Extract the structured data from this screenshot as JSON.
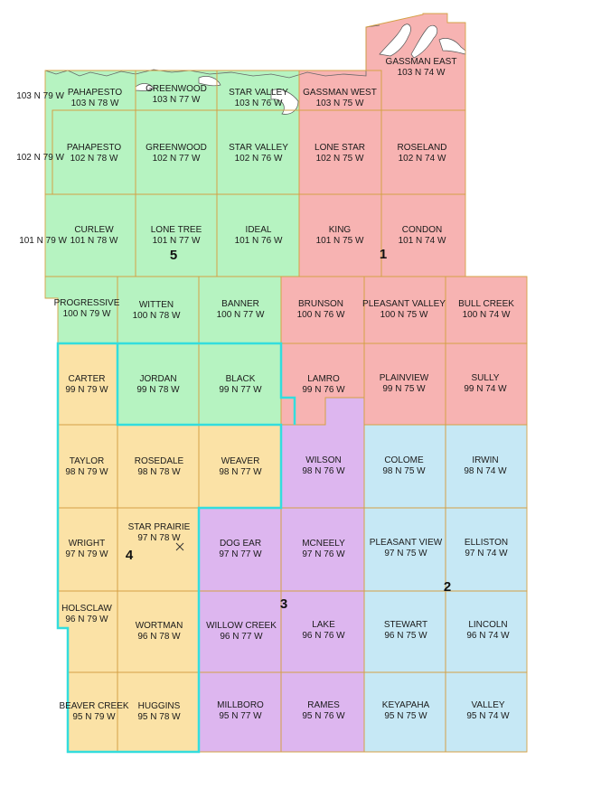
{
  "colors": {
    "district_1": "#f7b3b2",
    "district_2": "#c6e8f5",
    "district_3": "#ddb6ef",
    "district_4": "#fbe2a6",
    "district_5": "#b6f3c1",
    "township_border": "#d4a045",
    "highlight_border": "#33dddd",
    "water": "#ffffff"
  },
  "row_labels": [
    "103 N  79 W",
    "102 N  79 W",
    "101 N  79 W"
  ],
  "townships": [
    {
      "id": "pahapesto-103",
      "name": "PAHAPESTO",
      "code": "103 N  78 W",
      "district": 5
    },
    {
      "id": "greenwood-103",
      "name": "GREENWOOD",
      "code": "103 N  77 W",
      "district": 5
    },
    {
      "id": "star-valley-103",
      "name": "STAR VALLEY",
      "code": "103 N  76 W",
      "district": 5
    },
    {
      "id": "gassman-west",
      "name": "GASSMAN WEST",
      "code": "103 N  75 W",
      "district": 1
    },
    {
      "id": "gassman-east",
      "name": "GASSMAN EAST",
      "code": "103 N  74 W",
      "district": 1
    },
    {
      "id": "pahapesto-102",
      "name": "PAHAPESTO",
      "code": "102 N  78 W",
      "district": 5
    },
    {
      "id": "greenwood-102",
      "name": "GREENWOOD",
      "code": "102 N  77 W",
      "district": 5
    },
    {
      "id": "star-valley-102",
      "name": "STAR VALLEY",
      "code": "102 N  76 W",
      "district": 5
    },
    {
      "id": "lone-star",
      "name": "LONE STAR",
      "code": "102 N  75 W",
      "district": 1
    },
    {
      "id": "roseland",
      "name": "ROSELAND",
      "code": "102 N  74 W",
      "district": 1
    },
    {
      "id": "curlew",
      "name": "CURLEW",
      "code": "101 N  78 W",
      "district": 5
    },
    {
      "id": "lone-tree",
      "name": "LONE TREE",
      "code": "101 N  77 W",
      "district": 5
    },
    {
      "id": "ideal",
      "name": "IDEAL",
      "code": "101 N  76 W",
      "district": 5
    },
    {
      "id": "king",
      "name": "KING",
      "code": "101 N  75 W",
      "district": 1
    },
    {
      "id": "condon",
      "name": "CONDON",
      "code": "101 N  74 W",
      "district": 1
    },
    {
      "id": "progressive",
      "name": "PROGRESSIVE",
      "code": "100 N  79 W",
      "district": 5
    },
    {
      "id": "witten",
      "name": "WITTEN",
      "code": "100 N  78 W",
      "district": 5
    },
    {
      "id": "banner",
      "name": "BANNER",
      "code": "100 N  77 W",
      "district": 5
    },
    {
      "id": "brunson",
      "name": "BRUNSON",
      "code": "100 N  76 W",
      "district": 1
    },
    {
      "id": "pleasant-valley",
      "name": "PLEASANT VALLEY",
      "code": "100 N  75 W",
      "district": 1
    },
    {
      "id": "bull-creek",
      "name": "BULL CREEK",
      "code": "100 N  74 W",
      "district": 1
    },
    {
      "id": "carter",
      "name": "CARTER",
      "code": "99 N  79 W",
      "district": 4
    },
    {
      "id": "jordan",
      "name": "JORDAN",
      "code": "99 N  78 W",
      "district": 5
    },
    {
      "id": "black",
      "name": "BLACK",
      "code": "99 N  77 W",
      "district": 5
    },
    {
      "id": "lamro",
      "name": "LAMRO",
      "code": "99 N  76 W",
      "district": 1
    },
    {
      "id": "plainview",
      "name": "PLAINVIEW",
      "code": "99 N  75 W",
      "district": 1
    },
    {
      "id": "sully",
      "name": "SULLY",
      "code": "99 N  74 W",
      "district": 1
    },
    {
      "id": "taylor",
      "name": "TAYLOR",
      "code": "98 N  79 W",
      "district": 4
    },
    {
      "id": "rosedale",
      "name": "ROSEDALE",
      "code": "98 N  78 W",
      "district": 4
    },
    {
      "id": "weaver",
      "name": "WEAVER",
      "code": "98 N  77 W",
      "district": 4
    },
    {
      "id": "wilson",
      "name": "WILSON",
      "code": "98 N  76 W",
      "district": 3
    },
    {
      "id": "colome",
      "name": "COLOME",
      "code": "98 N  75 W",
      "district": 2
    },
    {
      "id": "irwin",
      "name": "IRWIN",
      "code": "98 N  74 W",
      "district": 2
    },
    {
      "id": "wright",
      "name": "WRIGHT",
      "code": "97 N  79 W",
      "district": 4
    },
    {
      "id": "star-prairie",
      "name": "STAR PRAIRIE",
      "code": "97 N  78 W",
      "district": 4
    },
    {
      "id": "dog-ear",
      "name": "DOG EAR",
      "code": "97 N  77 W",
      "district": 3
    },
    {
      "id": "mcneely",
      "name": "MCNEELY",
      "code": "97 N  76 W",
      "district": 3
    },
    {
      "id": "pleasant-view",
      "name": "PLEASANT VIEW",
      "code": "97 N  75 W",
      "district": 2
    },
    {
      "id": "elliston",
      "name": "ELLISTON",
      "code": "97 N  74 W",
      "district": 2
    },
    {
      "id": "holsclaw",
      "name": "HOLSCLAW",
      "code": "96 N  79 W",
      "district": 4
    },
    {
      "id": "wortman",
      "name": "WORTMAN",
      "code": "96 N  78 W",
      "district": 4
    },
    {
      "id": "willow-creek",
      "name": "WILLOW CREEK",
      "code": "96 N  77 W",
      "district": 3
    },
    {
      "id": "lake",
      "name": "LAKE",
      "code": "96 N  76 W",
      "district": 3
    },
    {
      "id": "stewart",
      "name": "STEWART",
      "code": "96 N  75 W",
      "district": 2
    },
    {
      "id": "lincoln",
      "name": "LINCOLN",
      "code": "96 N  74 W",
      "district": 2
    },
    {
      "id": "beaver-creek",
      "name": "BEAVER CREEK",
      "code": "95 N  79 W",
      "district": 4
    },
    {
      "id": "huggins",
      "name": "HUGGINS",
      "code": "95 N  78 W",
      "district": 4
    },
    {
      "id": "millboro",
      "name": "MILLBORO",
      "code": "95 N  77 W",
      "district": 3
    },
    {
      "id": "rames",
      "name": "RAMES",
      "code": "95 N  76 W",
      "district": 3
    },
    {
      "id": "keyapaha",
      "name": "KEYAPAHA",
      "code": "95 N  75 W",
      "district": 2
    },
    {
      "id": "valley",
      "name": "VALLEY",
      "code": "95 N  74 W",
      "district": 2
    }
  ],
  "districts": [
    {
      "id": "district-1",
      "label": "1"
    },
    {
      "id": "district-2",
      "label": "2"
    },
    {
      "id": "district-3",
      "label": "3"
    },
    {
      "id": "district-4",
      "label": "4"
    },
    {
      "id": "district-5",
      "label": "5"
    }
  ]
}
